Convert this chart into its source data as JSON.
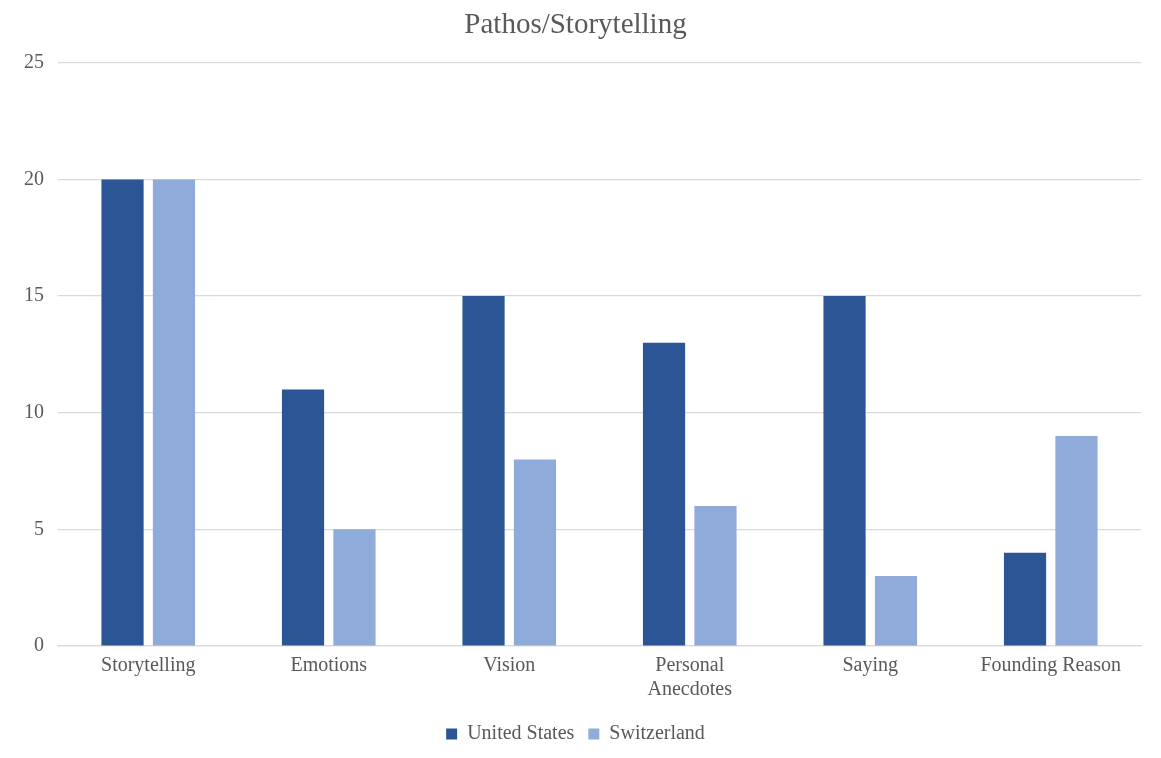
{
  "chart_data": {
    "type": "bar",
    "title": "Pathos/Storytelling",
    "categories": [
      "Storytelling",
      "Emotions",
      "Vision",
      "Personal Anecdotes",
      "Saying",
      "Founding Reason"
    ],
    "series": [
      {
        "name": "United States",
        "color": "#2c5596",
        "values": [
          20,
          11,
          15,
          13,
          15,
          4
        ]
      },
      {
        "name": "Switzerland",
        "color": "#8eabd9",
        "values": [
          20,
          5,
          8,
          6,
          3,
          9
        ]
      }
    ],
    "ylim": [
      0,
      25
    ],
    "yticks": [
      0,
      5,
      10,
      15,
      20,
      25
    ],
    "grid": "y",
    "legend": "bottom"
  }
}
